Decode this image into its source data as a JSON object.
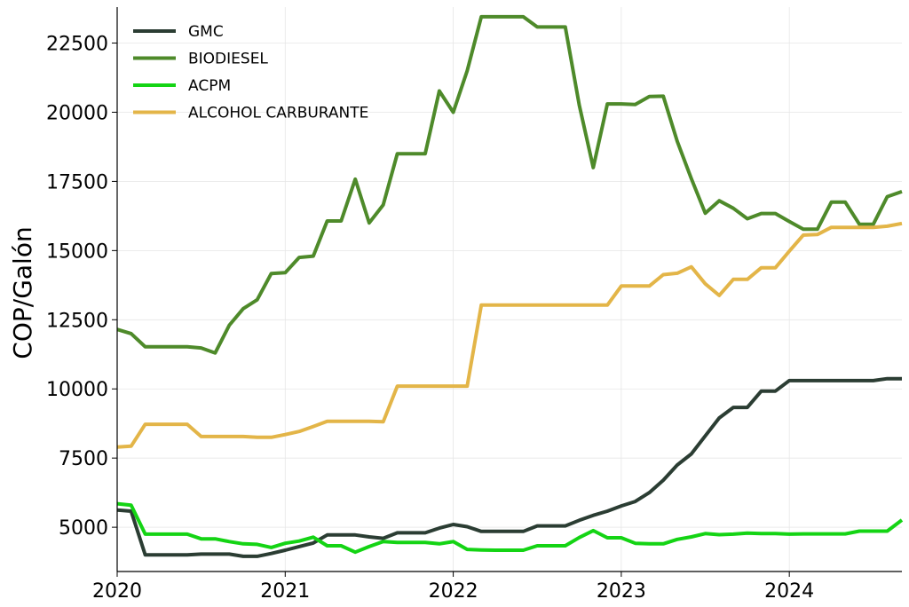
{
  "chart_data": {
    "type": "line",
    "title": "",
    "xlabel": "",
    "ylabel": "COP/Galón",
    "xlim": [
      2020.0,
      2024.67
    ],
    "ylim": [
      3400,
      23800
    ],
    "x_ticks": [
      2020,
      2021,
      2022,
      2023,
      2024
    ],
    "x_tick_labels": [
      "2020",
      "2021",
      "2022",
      "2023",
      "2024"
    ],
    "y_ticks": [
      5000,
      7500,
      10000,
      12500,
      15000,
      17500,
      20000,
      22500
    ],
    "y_tick_labels": [
      "5000",
      "7500",
      "10000",
      "12500",
      "15000",
      "17500",
      "20000",
      "22500"
    ],
    "grid": true,
    "legend_position": "top-left",
    "series": [
      {
        "name": "GMC",
        "color": "#2b3d33",
        "points": [
          [
            2020.0,
            5620
          ],
          [
            2020.083,
            5580
          ],
          [
            2020.167,
            4000
          ],
          [
            2020.25,
            4000
          ],
          [
            2020.333,
            4000
          ],
          [
            2020.417,
            4000
          ],
          [
            2020.5,
            4030
          ],
          [
            2020.583,
            4030
          ],
          [
            2020.667,
            4030
          ],
          [
            2020.75,
            3950
          ],
          [
            2020.833,
            3950
          ],
          [
            2020.917,
            4050
          ],
          [
            2021.0,
            4170
          ],
          [
            2021.083,
            4300
          ],
          [
            2021.167,
            4430
          ],
          [
            2021.25,
            4720
          ],
          [
            2021.333,
            4720
          ],
          [
            2021.417,
            4720
          ],
          [
            2021.5,
            4650
          ],
          [
            2021.583,
            4600
          ],
          [
            2021.667,
            4800
          ],
          [
            2021.75,
            4800
          ],
          [
            2021.833,
            4800
          ],
          [
            2021.917,
            4970
          ],
          [
            2022.0,
            5100
          ],
          [
            2022.083,
            5020
          ],
          [
            2022.167,
            4850
          ],
          [
            2022.25,
            4850
          ],
          [
            2022.333,
            4850
          ],
          [
            2022.417,
            4850
          ],
          [
            2022.5,
            5050
          ],
          [
            2022.583,
            5050
          ],
          [
            2022.667,
            5050
          ],
          [
            2022.75,
            5250
          ],
          [
            2022.833,
            5430
          ],
          [
            2022.917,
            5580
          ],
          [
            2023.0,
            5770
          ],
          [
            2023.083,
            5930
          ],
          [
            2023.167,
            6250
          ],
          [
            2023.25,
            6700
          ],
          [
            2023.333,
            7250
          ],
          [
            2023.417,
            7650
          ],
          [
            2023.5,
            8300
          ],
          [
            2023.583,
            8950
          ],
          [
            2023.667,
            9330
          ],
          [
            2023.75,
            9330
          ],
          [
            2023.833,
            9920
          ],
          [
            2023.917,
            9920
          ],
          [
            2024.0,
            10300
          ],
          [
            2024.083,
            10300
          ],
          [
            2024.167,
            10300
          ],
          [
            2024.25,
            10300
          ],
          [
            2024.333,
            10300
          ],
          [
            2024.417,
            10300
          ],
          [
            2024.5,
            10300
          ],
          [
            2024.583,
            10370
          ],
          [
            2024.67,
            10370
          ]
        ]
      },
      {
        "name": "BIODIESEL",
        "color": "#4e8a2a",
        "points": [
          [
            2020.0,
            12150
          ],
          [
            2020.083,
            12000
          ],
          [
            2020.167,
            11520
          ],
          [
            2020.25,
            11520
          ],
          [
            2020.333,
            11520
          ],
          [
            2020.417,
            11520
          ],
          [
            2020.5,
            11480
          ],
          [
            2020.583,
            11300
          ],
          [
            2020.667,
            12300
          ],
          [
            2020.75,
            12900
          ],
          [
            2020.833,
            13220
          ],
          [
            2020.917,
            14170
          ],
          [
            2021.0,
            14200
          ],
          [
            2021.083,
            14750
          ],
          [
            2021.167,
            14800
          ],
          [
            2021.25,
            16070
          ],
          [
            2021.333,
            16070
          ],
          [
            2021.417,
            17580
          ],
          [
            2021.5,
            16000
          ],
          [
            2021.583,
            16650
          ],
          [
            2021.667,
            18500
          ],
          [
            2021.75,
            18500
          ],
          [
            2021.833,
            18500
          ],
          [
            2021.917,
            20770
          ],
          [
            2022.0,
            20000
          ],
          [
            2022.083,
            21500
          ],
          [
            2022.167,
            23450
          ],
          [
            2022.25,
            23450
          ],
          [
            2022.333,
            23450
          ],
          [
            2022.417,
            23450
          ],
          [
            2022.5,
            23080
          ],
          [
            2022.583,
            23080
          ],
          [
            2022.667,
            23080
          ],
          [
            2022.75,
            20250
          ],
          [
            2022.833,
            18000
          ],
          [
            2022.917,
            20300
          ],
          [
            2023.0,
            20300
          ],
          [
            2023.083,
            20280
          ],
          [
            2023.167,
            20570
          ],
          [
            2023.25,
            20580
          ],
          [
            2023.333,
            18950
          ],
          [
            2023.417,
            17600
          ],
          [
            2023.5,
            16350
          ],
          [
            2023.583,
            16800
          ],
          [
            2023.667,
            16530
          ],
          [
            2023.75,
            16150
          ],
          [
            2023.833,
            16340
          ],
          [
            2023.917,
            16340
          ],
          [
            2024.0,
            16050
          ],
          [
            2024.083,
            15770
          ],
          [
            2024.167,
            15770
          ],
          [
            2024.25,
            16750
          ],
          [
            2024.333,
            16750
          ],
          [
            2024.417,
            15950
          ],
          [
            2024.5,
            15950
          ],
          [
            2024.583,
            16950
          ],
          [
            2024.67,
            17130
          ]
        ]
      },
      {
        "name": "ACPM",
        "color": "#14d414",
        "points": [
          [
            2020.0,
            5850
          ],
          [
            2020.083,
            5800
          ],
          [
            2020.167,
            4750
          ],
          [
            2020.25,
            4750
          ],
          [
            2020.333,
            4750
          ],
          [
            2020.417,
            4750
          ],
          [
            2020.5,
            4580
          ],
          [
            2020.583,
            4580
          ],
          [
            2020.667,
            4480
          ],
          [
            2020.75,
            4400
          ],
          [
            2020.833,
            4380
          ],
          [
            2020.917,
            4270
          ],
          [
            2021.0,
            4420
          ],
          [
            2021.083,
            4500
          ],
          [
            2021.167,
            4640
          ],
          [
            2021.25,
            4330
          ],
          [
            2021.333,
            4330
          ],
          [
            2021.417,
            4100
          ],
          [
            2021.5,
            4300
          ],
          [
            2021.583,
            4480
          ],
          [
            2021.667,
            4450
          ],
          [
            2021.75,
            4450
          ],
          [
            2021.833,
            4450
          ],
          [
            2021.917,
            4400
          ],
          [
            2022.0,
            4480
          ],
          [
            2022.083,
            4200
          ],
          [
            2022.167,
            4180
          ],
          [
            2022.25,
            4170
          ],
          [
            2022.333,
            4170
          ],
          [
            2022.417,
            4170
          ],
          [
            2022.5,
            4330
          ],
          [
            2022.583,
            4330
          ],
          [
            2022.667,
            4330
          ],
          [
            2022.75,
            4630
          ],
          [
            2022.833,
            4880
          ],
          [
            2022.917,
            4620
          ],
          [
            2023.0,
            4620
          ],
          [
            2023.083,
            4420
          ],
          [
            2023.167,
            4400
          ],
          [
            2023.25,
            4400
          ],
          [
            2023.333,
            4560
          ],
          [
            2023.417,
            4650
          ],
          [
            2023.5,
            4770
          ],
          [
            2023.583,
            4730
          ],
          [
            2023.667,
            4750
          ],
          [
            2023.75,
            4790
          ],
          [
            2023.833,
            4770
          ],
          [
            2023.917,
            4770
          ],
          [
            2024.0,
            4750
          ],
          [
            2024.083,
            4760
          ],
          [
            2024.167,
            4760
          ],
          [
            2024.25,
            4760
          ],
          [
            2024.333,
            4760
          ],
          [
            2024.417,
            4860
          ],
          [
            2024.5,
            4860
          ],
          [
            2024.583,
            4860
          ],
          [
            2024.67,
            5260
          ]
        ]
      },
      {
        "name": "ALCOHOL CARBURANTE",
        "color": "#e3b548",
        "points": [
          [
            2020.0,
            7900
          ],
          [
            2020.083,
            7930
          ],
          [
            2020.167,
            8720
          ],
          [
            2020.25,
            8720
          ],
          [
            2020.333,
            8720
          ],
          [
            2020.417,
            8720
          ],
          [
            2020.5,
            8280
          ],
          [
            2020.583,
            8280
          ],
          [
            2020.667,
            8280
          ],
          [
            2020.75,
            8280
          ],
          [
            2020.833,
            8250
          ],
          [
            2020.917,
            8250
          ],
          [
            2021.0,
            8350
          ],
          [
            2021.083,
            8460
          ],
          [
            2021.167,
            8640
          ],
          [
            2021.25,
            8830
          ],
          [
            2021.333,
            8830
          ],
          [
            2021.417,
            8830
          ],
          [
            2021.5,
            8830
          ],
          [
            2021.583,
            8810
          ],
          [
            2021.667,
            10100
          ],
          [
            2021.75,
            10100
          ],
          [
            2021.833,
            10100
          ],
          [
            2021.917,
            10100
          ],
          [
            2022.0,
            10100
          ],
          [
            2022.083,
            10100
          ],
          [
            2022.167,
            13030
          ],
          [
            2022.25,
            13030
          ],
          [
            2022.333,
            13030
          ],
          [
            2022.417,
            13030
          ],
          [
            2022.5,
            13030
          ],
          [
            2022.583,
            13030
          ],
          [
            2022.667,
            13030
          ],
          [
            2022.75,
            13030
          ],
          [
            2022.833,
            13030
          ],
          [
            2022.917,
            13030
          ],
          [
            2023.0,
            13720
          ],
          [
            2023.083,
            13720
          ],
          [
            2023.167,
            13720
          ],
          [
            2023.25,
            14130
          ],
          [
            2023.333,
            14180
          ],
          [
            2023.417,
            14410
          ],
          [
            2023.5,
            13800
          ],
          [
            2023.583,
            13380
          ],
          [
            2023.667,
            13960
          ],
          [
            2023.75,
            13960
          ],
          [
            2023.833,
            14380
          ],
          [
            2023.917,
            14380
          ],
          [
            2024.0,
            14980
          ],
          [
            2024.083,
            15560
          ],
          [
            2024.167,
            15580
          ],
          [
            2024.25,
            15840
          ],
          [
            2024.333,
            15840
          ],
          [
            2024.417,
            15840
          ],
          [
            2024.5,
            15840
          ],
          [
            2024.583,
            15880
          ],
          [
            2024.67,
            15980
          ]
        ]
      }
    ]
  }
}
